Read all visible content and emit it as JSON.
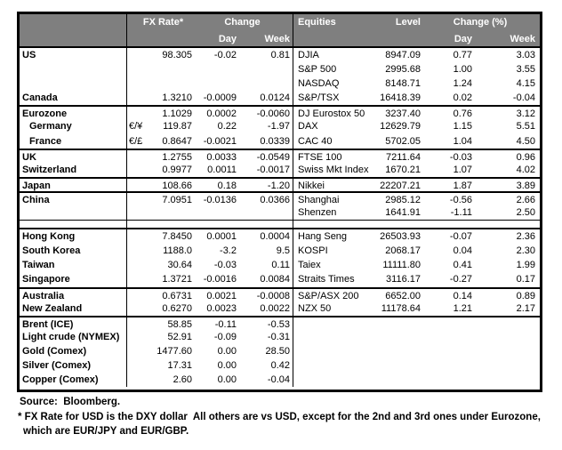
{
  "colors": {
    "header_bg": "#7f7f7f",
    "header_text": "#ffffff",
    "border": "#000000",
    "body_bg": "#ffffff"
  },
  "header": {
    "left": {
      "fx_rate": "FX Rate*",
      "change": "Change",
      "day": "Day",
      "week": "Week"
    },
    "right": {
      "equities": "Equities",
      "level": "Level",
      "change_pct": "Change (%)",
      "day": "Day",
      "week": "Week"
    }
  },
  "rows": [
    {
      "country": "US",
      "pair": "",
      "fx": "98.305",
      "fx_day": "-0.02",
      "fx_week": "0.81",
      "equity": "DJIA",
      "level": "8947.09",
      "eq_day": "0.77",
      "eq_week": "3.03",
      "indent": false,
      "sep": false,
      "type": "data"
    },
    {
      "country": "",
      "pair": "",
      "fx": "",
      "fx_day": "",
      "fx_week": "",
      "equity": "S&P 500",
      "level": "2995.68",
      "eq_day": "1.00",
      "eq_week": "3.55",
      "indent": false,
      "sep": false,
      "type": "data"
    },
    {
      "country": "",
      "pair": "",
      "fx": "",
      "fx_day": "",
      "fx_week": "",
      "equity": "NASDAQ",
      "level": "8148.71",
      "eq_day": "1.24",
      "eq_week": "4.15",
      "indent": false,
      "sep": false,
      "type": "data"
    },
    {
      "country": "Canada",
      "pair": "",
      "fx": "1.3210",
      "fx_day": "-0.0009",
      "fx_week": "0.0124",
      "equity": "S&P/TSX",
      "level": "16418.39",
      "eq_day": "0.02",
      "eq_week": "-0.04",
      "indent": false,
      "sep": false,
      "type": "data"
    },
    {
      "country": "Eurozone",
      "pair": "",
      "fx": "1.1029",
      "fx_day": "0.0002",
      "fx_week": "-0.0060",
      "equity": "DJ Eurostox 50",
      "level": "3237.40",
      "eq_day": "0.76",
      "eq_week": "3.12",
      "indent": false,
      "sep": true,
      "type": "data"
    },
    {
      "country": "Germany",
      "pair": "€/¥",
      "fx": "119.87",
      "fx_day": "0.22",
      "fx_week": "-1.97",
      "equity": "DAX",
      "level": "12629.79",
      "eq_day": "1.15",
      "eq_week": "5.51",
      "indent": true,
      "sep": false,
      "type": "data"
    },
    {
      "country": "France",
      "pair": "€/£",
      "fx": "0.8647",
      "fx_day": "-0.0021",
      "fx_week": "0.0339",
      "equity": "CAC 40",
      "level": "5702.05",
      "eq_day": "1.04",
      "eq_week": "4.50",
      "indent": true,
      "sep": false,
      "type": "data"
    },
    {
      "country": "UK",
      "pair": "",
      "fx": "1.2755",
      "fx_day": "0.0033",
      "fx_week": "-0.0549",
      "equity": "FTSE 100",
      "level": "7211.64",
      "eq_day": "-0.03",
      "eq_week": "0.96",
      "indent": false,
      "sep": true,
      "type": "data"
    },
    {
      "country": "Switzerland",
      "pair": "",
      "fx": "0.9977",
      "fx_day": "0.0011",
      "fx_week": "-0.0017",
      "equity": "Swiss Mkt Index",
      "level": "1670.21",
      "eq_day": "1.07",
      "eq_week": "4.02",
      "indent": false,
      "sep": false,
      "type": "data"
    },
    {
      "country": "Japan",
      "pair": "",
      "fx": "108.66",
      "fx_day": "0.18",
      "fx_week": "-1.20",
      "equity": "Nikkei",
      "level": "22207.21",
      "eq_day": "1.87",
      "eq_week": "3.89",
      "indent": false,
      "sep": true,
      "type": "data"
    },
    {
      "country": "China",
      "pair": "",
      "fx": "7.0951",
      "fx_day": "-0.0136",
      "fx_week": "0.0366",
      "equity": "Shanghai",
      "level": "2985.12",
      "eq_day": "-0.56",
      "eq_week": "2.66",
      "indent": false,
      "sep": true,
      "type": "data"
    },
    {
      "country": "",
      "pair": "",
      "fx": "",
      "fx_day": "",
      "fx_week": "",
      "equity": "Shenzen",
      "level": "1641.91",
      "eq_day": "-1.11",
      "eq_week": "2.50",
      "indent": false,
      "sep": false,
      "type": "data"
    },
    {
      "type": "spacer"
    },
    {
      "country": "Hong Kong",
      "pair": "",
      "fx": "7.8450",
      "fx_day": "0.0001",
      "fx_week": "0.0004",
      "equity": "Hang Seng",
      "level": "26503.93",
      "eq_day": "-0.07",
      "eq_week": "2.36",
      "indent": false,
      "sep": false,
      "type": "data"
    },
    {
      "country": "South Korea",
      "pair": "",
      "fx": "1188.0",
      "fx_day": "-3.2",
      "fx_week": "9.5",
      "equity": "KOSPI",
      "level": "2068.17",
      "eq_day": "0.04",
      "eq_week": "2.30",
      "indent": false,
      "sep": false,
      "type": "data"
    },
    {
      "country": "Taiwan",
      "pair": "",
      "fx": "30.64",
      "fx_day": "-0.03",
      "fx_week": "0.11",
      "equity": "Taiex",
      "level": "11111.80",
      "eq_day": "0.41",
      "eq_week": "1.99",
      "indent": false,
      "sep": false,
      "type": "data"
    },
    {
      "country": "Singapore",
      "pair": "",
      "fx": "1.3721",
      "fx_day": "-0.0016",
      "fx_week": "0.0084",
      "equity": "Straits Times",
      "level": "3116.17",
      "eq_day": "-0.27",
      "eq_week": "0.17",
      "indent": false,
      "sep": false,
      "type": "data"
    },
    {
      "country": "Australia",
      "pair": "",
      "fx": "0.6731",
      "fx_day": "0.0021",
      "fx_week": "-0.0008",
      "equity": "S&P/ASX  200",
      "level": "6652.00",
      "eq_day": "0.14",
      "eq_week": "0.89",
      "indent": false,
      "sep": true,
      "type": "data"
    },
    {
      "country": "New Zealand",
      "pair": "",
      "fx": "0.6270",
      "fx_day": "0.0023",
      "fx_week": "0.0022",
      "equity": "NZX 50",
      "level": "11178.64",
      "eq_day": "1.21",
      "eq_week": "2.17",
      "indent": false,
      "sep": false,
      "type": "data"
    },
    {
      "country": "Brent (ICE)",
      "pair": "",
      "fx": "58.85",
      "fx_day": "-0.11",
      "fx_week": "-0.53",
      "equity": "",
      "level": "",
      "eq_day": "",
      "eq_week": "",
      "indent": false,
      "sep": true,
      "type": "data"
    },
    {
      "country": "Light crude (NYMEX)",
      "pair": "",
      "fx": "52.91",
      "fx_day": "-0.09",
      "fx_week": "-0.31",
      "equity": "",
      "level": "",
      "eq_day": "",
      "eq_week": "",
      "indent": false,
      "sep": false,
      "type": "data"
    },
    {
      "country": "Gold (Comex)",
      "pair": "",
      "fx": "1477.60",
      "fx_day": "0.00",
      "fx_week": "28.50",
      "equity": "",
      "level": "",
      "eq_day": "",
      "eq_week": "",
      "indent": false,
      "sep": false,
      "type": "data"
    },
    {
      "country": "Silver (Comex)",
      "pair": "",
      "fx": "17.31",
      "fx_day": "0.00",
      "fx_week": "0.42",
      "equity": "",
      "level": "",
      "eq_day": "",
      "eq_week": "",
      "indent": false,
      "sep": false,
      "type": "data"
    },
    {
      "country": "Copper (Comex)",
      "pair": "",
      "fx": "2.60",
      "fx_day": "0.00",
      "fx_week": "-0.04",
      "equity": "",
      "level": "",
      "eq_day": "",
      "eq_week": "",
      "indent": false,
      "sep": false,
      "type": "data"
    }
  ],
  "footer": {
    "source": "Source:  Bloomberg.",
    "footnote_line1": "* FX Rate for USD is the DXY dollar  All others are vs USD, except for the 2nd and 3rd ones under Eurozone,",
    "footnote_line2": "which are EUR/JPY and EUR/GBP."
  }
}
